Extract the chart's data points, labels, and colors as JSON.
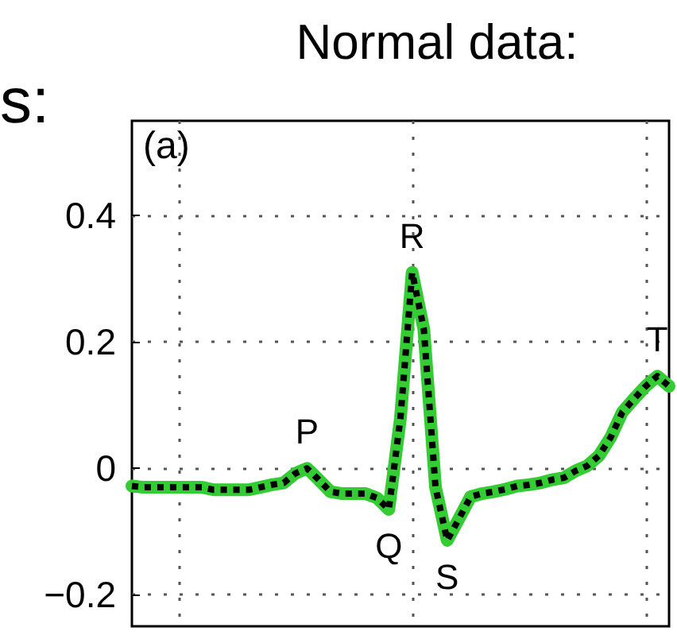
{
  "chart_data": {
    "type": "line",
    "title": "Normal data:",
    "annotations": [
      "s:",
      "(a)",
      {
        "text": "P",
        "y": 0.0
      },
      {
        "text": "Q",
        "y": -0.065
      },
      {
        "text": "R",
        "y": 0.31
      },
      {
        "text": "S",
        "y": -0.114
      },
      {
        "text": "T",
        "y": 0.146
      }
    ],
    "categories": [
      null,
      null,
      null,
      null,
      null,
      null,
      null,
      null,
      null,
      null,
      null,
      null,
      null,
      null,
      null,
      null,
      null,
      null,
      null,
      null,
      null,
      null,
      null,
      null,
      null,
      null,
      null,
      null,
      null,
      null,
      null,
      null,
      null,
      null,
      null,
      null,
      null,
      null,
      null,
      null,
      null,
      null,
      null,
      null,
      null,
      null,
      null
    ],
    "series": [
      {
        "color": "#33cc33",
        "line_style": "solid",
        "values": [
          -0.028,
          -0.03,
          -0.03,
          -0.03,
          -0.03,
          -0.03,
          -0.03,
          -0.034,
          -0.034,
          -0.034,
          -0.034,
          -0.03,
          -0.026,
          -0.023,
          -0.008,
          0.0,
          -0.018,
          -0.037,
          -0.04,
          -0.04,
          -0.04,
          -0.047,
          -0.065,
          0.08,
          0.31,
          0.22,
          -0.03,
          -0.114,
          -0.08,
          -0.045,
          -0.04,
          -0.037,
          -0.033,
          -0.028,
          -0.026,
          -0.023,
          -0.018,
          -0.015,
          -0.004,
          0.004,
          0.02,
          0.049,
          0.089,
          0.11,
          0.13,
          0.146,
          0.13
        ]
      },
      {
        "color": "#000000",
        "line_style": "dotted",
        "values": [
          -0.028,
          -0.03,
          -0.03,
          -0.03,
          -0.03,
          -0.03,
          -0.03,
          -0.034,
          -0.034,
          -0.034,
          -0.034,
          -0.03,
          -0.026,
          -0.023,
          -0.008,
          0.0,
          -0.018,
          -0.037,
          -0.04,
          -0.04,
          -0.04,
          -0.047,
          -0.065,
          0.08,
          0.31,
          0.22,
          -0.03,
          -0.114,
          -0.08,
          -0.045,
          -0.04,
          -0.037,
          -0.033,
          -0.028,
          -0.026,
          -0.023,
          -0.018,
          -0.015,
          -0.004,
          0.004,
          0.02,
          0.049,
          0.089,
          0.11,
          0.13,
          0.146,
          0.13
        ]
      }
    ],
    "ylim": [
      -0.25,
      0.55
    ],
    "yticks": [
      {
        "value": -0.2,
        "label": "−0.2"
      },
      0,
      0.2,
      0.4
    ],
    "grid": true,
    "marker": "none"
  }
}
